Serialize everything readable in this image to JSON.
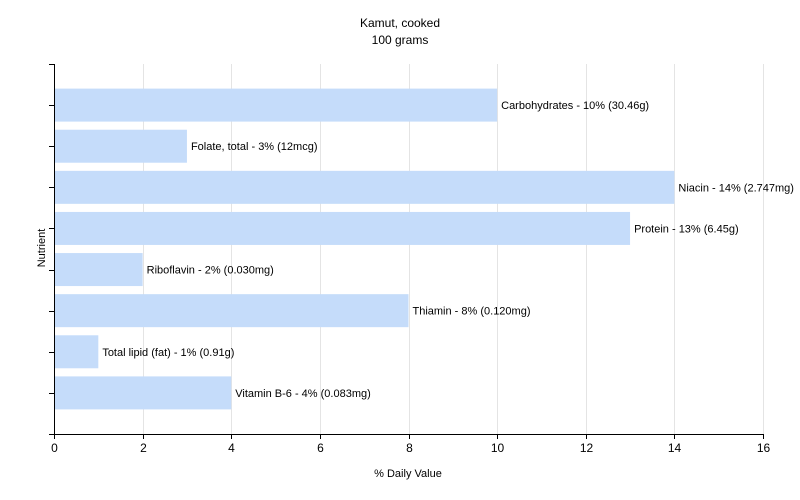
{
  "chart_data": {
    "type": "bar",
    "orientation": "horizontal",
    "title": "Kamut, cooked",
    "subtitle": "100 grams",
    "xlabel": "% Daily Value",
    "ylabel": "Nutrient",
    "xlim": [
      0,
      16
    ],
    "x_ticks": [
      "0",
      "2",
      "4",
      "6",
      "8",
      "10",
      "12",
      "14",
      "16"
    ],
    "grid": "vertical",
    "bar_color": "#c5dcfa",
    "categories": [
      "Carbohydrates",
      "Folate, total",
      "Niacin",
      "Protein",
      "Riboflavin",
      "Thiamin",
      "Total lipid (fat)",
      "Vitamin B-6"
    ],
    "values": [
      10,
      3,
      14,
      13,
      2,
      8,
      1,
      4
    ],
    "labels": [
      "Carbohydrates - 10% (30.46g)",
      "Folate, total - 3% (12mcg)",
      "Niacin - 14% (2.747mg)",
      "Protein - 13% (6.45g)",
      "Riboflavin - 2% (0.030mg)",
      "Thiamin - 8% (0.120mg)",
      "Total lipid (fat) - 1% (0.91g)",
      "Vitamin B-6 - 4% (0.083mg)"
    ]
  }
}
